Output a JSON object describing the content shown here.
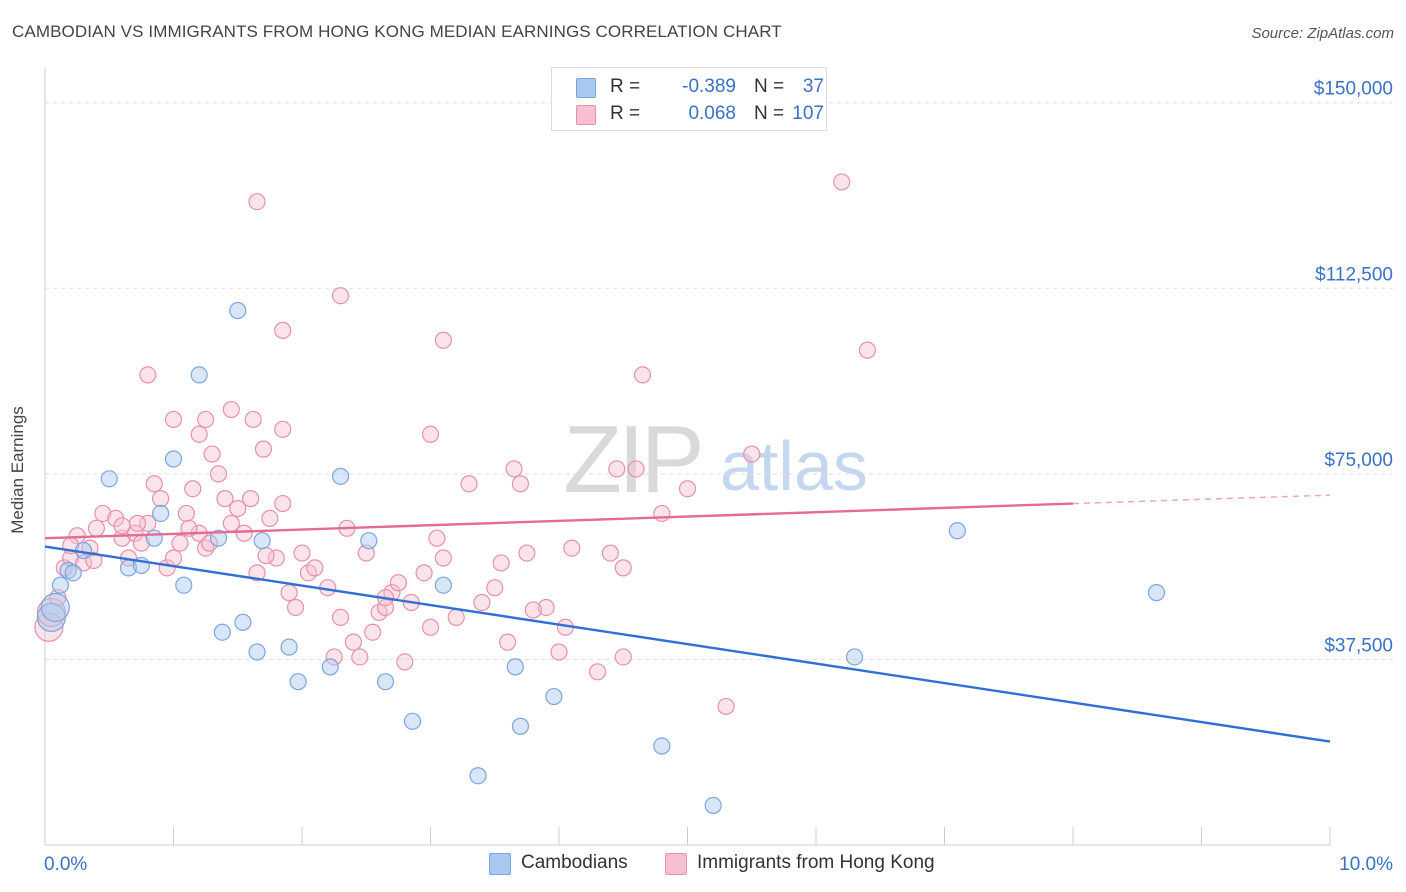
{
  "title": "CAMBODIAN VS IMMIGRANTS FROM HONG KONG MEDIAN EARNINGS CORRELATION CHART",
  "source": "Source: ZipAtlas.com",
  "watermark": {
    "zip": "ZIP",
    "atlas": "atlas"
  },
  "legend": {
    "series": [
      {
        "r_label": "R =",
        "r_value": "-0.389",
        "n_label": "N =",
        "n_value": "37",
        "color": "#a9c8f0",
        "border": "#7aa6e0"
      },
      {
        "r_label": "R =",
        "r_value": "0.068",
        "n_label": "N =",
        "n_value": "107",
        "color": "#f7c0d0",
        "border": "#e890ac"
      }
    ]
  },
  "bottom_legend": [
    {
      "label": "Cambodians",
      "color": "#a9c8f0",
      "border": "#7aa6e0"
    },
    {
      "label": "Immigrants from Hong Kong",
      "color": "#f7c0d0",
      "border": "#e890ac"
    }
  ],
  "chart_data": {
    "type": "scatter",
    "title": "CAMBODIAN VS IMMIGRANTS FROM HONG KONG MEDIAN EARNINGS CORRELATION CHART",
    "xlabel": "",
    "ylabel": "Median Earnings",
    "xlim": [
      0,
      10
    ],
    "ylim": [
      0,
      155000
    ],
    "x_tick_labels": {
      "min": "0.0%",
      "max": "10.0%"
    },
    "y_ticks": [
      {
        "value": 37500,
        "label": "$37,500"
      },
      {
        "value": 75000,
        "label": "$75,000"
      },
      {
        "value": 112500,
        "label": "$112,500"
      },
      {
        "value": 150000,
        "label": "$150,000"
      }
    ],
    "series": [
      {
        "name": "Cambodians",
        "color": "#a9c8f0",
        "stroke": "#7aa6e0",
        "line_color": "#2f6fd6",
        "trend": {
          "x1": 0.0,
          "y1": 60300,
          "x2": 10.0,
          "y2": 20900
        },
        "points": [
          [
            0.05,
            46000
          ],
          [
            0.12,
            52500
          ],
          [
            0.18,
            55500
          ],
          [
            0.22,
            55000
          ],
          [
            0.3,
            59500
          ],
          [
            0.5,
            74000
          ],
          [
            0.65,
            56000
          ],
          [
            0.75,
            56500
          ],
          [
            0.85,
            62000
          ],
          [
            0.9,
            67000
          ],
          [
            1.0,
            78000
          ],
          [
            1.08,
            52500
          ],
          [
            1.2,
            95000
          ],
          [
            1.35,
            62000
          ],
          [
            1.38,
            43000
          ],
          [
            1.5,
            108000
          ],
          [
            1.54,
            45000
          ],
          [
            1.65,
            39000
          ],
          [
            1.69,
            61500
          ],
          [
            1.9,
            40000
          ],
          [
            1.97,
            33000
          ],
          [
            2.22,
            36000
          ],
          [
            2.3,
            74500
          ],
          [
            2.52,
            61500
          ],
          [
            2.65,
            33000
          ],
          [
            2.86,
            25000
          ],
          [
            3.1,
            52500
          ],
          [
            3.37,
            14000
          ],
          [
            3.66,
            36000
          ],
          [
            3.7,
            24000
          ],
          [
            3.96,
            30000
          ],
          [
            4.8,
            20000
          ],
          [
            5.2,
            8000
          ],
          [
            6.3,
            38000
          ],
          [
            7.1,
            63500
          ],
          [
            8.65,
            51000
          ],
          [
            0.08,
            48000
          ]
        ]
      },
      {
        "name": "Immigrants from Hong Kong",
        "color": "#f7c0d0",
        "stroke": "#e890ac",
        "line_color": "#e36b95",
        "trend": {
          "x1": 0.0,
          "y1": 62000,
          "x2": 8.0,
          "y2": 69000,
          "dash_to_x": 10.0,
          "dash_to_y": 70700
        },
        "points": [
          [
            0.03,
            44000
          ],
          [
            0.05,
            47000
          ],
          [
            0.1,
            50000
          ],
          [
            0.15,
            56000
          ],
          [
            0.2,
            58000
          ],
          [
            0.25,
            62500
          ],
          [
            0.3,
            57000
          ],
          [
            0.35,
            60000
          ],
          [
            0.4,
            64000
          ],
          [
            0.45,
            67000
          ],
          [
            0.55,
            66000
          ],
          [
            0.6,
            62000
          ],
          [
            0.65,
            58000
          ],
          [
            0.7,
            63000
          ],
          [
            0.75,
            61000
          ],
          [
            0.8,
            65000
          ],
          [
            0.85,
            73000
          ],
          [
            0.9,
            70000
          ],
          [
            0.95,
            56000
          ],
          [
            1.0,
            58000
          ],
          [
            1.05,
            61000
          ],
          [
            1.1,
            67000
          ],
          [
            1.15,
            72000
          ],
          [
            1.2,
            63000
          ],
          [
            1.25,
            60000
          ],
          [
            1.3,
            79000
          ],
          [
            1.35,
            75000
          ],
          [
            1.4,
            70000
          ],
          [
            1.45,
            65000
          ],
          [
            1.5,
            68000
          ],
          [
            1.55,
            63000
          ],
          [
            1.6,
            70000
          ],
          [
            1.65,
            55000
          ],
          [
            1.7,
            80000
          ],
          [
            1.75,
            66000
          ],
          [
            1.8,
            58000
          ],
          [
            1.85,
            69000
          ],
          [
            1.9,
            51000
          ],
          [
            1.95,
            48000
          ],
          [
            2.0,
            59000
          ],
          [
            2.05,
            55000
          ],
          [
            2.1,
            56000
          ],
          [
            2.2,
            52000
          ],
          [
            2.25,
            38000
          ],
          [
            2.3,
            46000
          ],
          [
            2.35,
            64000
          ],
          [
            2.4,
            41000
          ],
          [
            2.45,
            38000
          ],
          [
            2.5,
            59000
          ],
          [
            2.55,
            43000
          ],
          [
            2.6,
            47000
          ],
          [
            2.65,
            48000
          ],
          [
            2.7,
            51000
          ],
          [
            2.75,
            53000
          ],
          [
            2.8,
            37000
          ],
          [
            2.85,
            49000
          ],
          [
            2.95,
            55000
          ],
          [
            3.0,
            44000
          ],
          [
            3.05,
            62000
          ],
          [
            3.1,
            58000
          ],
          [
            3.2,
            46000
          ],
          [
            3.3,
            73000
          ],
          [
            3.4,
            49000
          ],
          [
            3.5,
            52000
          ],
          [
            3.55,
            57000
          ],
          [
            3.6,
            41000
          ],
          [
            3.7,
            73000
          ],
          [
            3.75,
            59000
          ],
          [
            3.9,
            48000
          ],
          [
            4.0,
            39000
          ],
          [
            4.05,
            44000
          ],
          [
            4.1,
            60000
          ],
          [
            4.3,
            35000
          ],
          [
            4.4,
            59000
          ],
          [
            4.5,
            56000
          ],
          [
            4.6,
            76000
          ],
          [
            4.65,
            95000
          ],
          [
            4.8,
            67000
          ],
          [
            5.0,
            72000
          ],
          [
            5.3,
            28000
          ],
          [
            5.5,
            79000
          ],
          [
            6.2,
            134000
          ],
          [
            6.4,
            100000
          ],
          [
            1.65,
            130000
          ],
          [
            2.3,
            111000
          ],
          [
            1.85,
            104000
          ],
          [
            3.1,
            102000
          ],
          [
            0.8,
            95000
          ],
          [
            1.0,
            86000
          ],
          [
            1.25,
            86000
          ],
          [
            1.62,
            86000
          ],
          [
            1.85,
            84000
          ],
          [
            3.0,
            83000
          ],
          [
            1.45,
            88000
          ],
          [
            3.65,
            76000
          ],
          [
            4.45,
            76000
          ],
          [
            1.2,
            83000
          ],
          [
            0.2,
            60500
          ],
          [
            0.38,
            57500
          ],
          [
            0.6,
            64500
          ],
          [
            0.72,
            65000
          ],
          [
            1.12,
            64000
          ],
          [
            1.28,
            61000
          ],
          [
            1.72,
            58500
          ],
          [
            2.65,
            50000
          ],
          [
            3.8,
            47500
          ],
          [
            4.5,
            38000
          ]
        ]
      }
    ]
  }
}
